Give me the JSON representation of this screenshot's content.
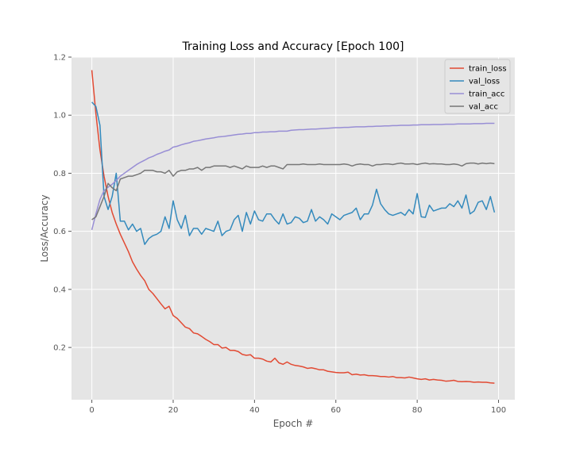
{
  "chart_data": {
    "type": "line",
    "title": "Training Loss and Accuracy [Epoch 100]",
    "xlabel": "Epoch #",
    "ylabel": "Loss/Accuracy",
    "xlim": [
      -5,
      104
    ],
    "ylim": [
      0.02,
      1.2
    ],
    "xticks": [
      0,
      20,
      40,
      60,
      80,
      100
    ],
    "yticks": [
      0.2,
      0.4,
      0.6,
      0.8,
      1.0,
      1.2
    ],
    "xtick_labels": [
      "0",
      "20",
      "40",
      "60",
      "80",
      "100"
    ],
    "ytick_labels": [
      "0.2",
      "0.4",
      "0.6",
      "0.8",
      "1.0",
      "1.2"
    ],
    "grid": true,
    "legend_position": "top-right",
    "series": [
      {
        "name": "train_loss",
        "color": "#e24a33",
        "values": [
          1.155,
          1.005,
          0.88,
          0.79,
          0.72,
          0.665,
          0.625,
          0.59,
          0.56,
          0.53,
          0.495,
          0.47,
          0.448,
          0.43,
          0.4,
          0.386,
          0.368,
          0.35,
          0.333,
          0.342,
          0.31,
          0.3,
          0.285,
          0.27,
          0.265,
          0.25,
          0.247,
          0.238,
          0.228,
          0.22,
          0.21,
          0.21,
          0.198,
          0.2,
          0.19,
          0.19,
          0.186,
          0.176,
          0.173,
          0.175,
          0.163,
          0.163,
          0.16,
          0.153,
          0.15,
          0.163,
          0.147,
          0.142,
          0.15,
          0.142,
          0.138,
          0.136,
          0.133,
          0.128,
          0.13,
          0.127,
          0.123,
          0.123,
          0.118,
          0.116,
          0.114,
          0.113,
          0.113,
          0.115,
          0.106,
          0.108,
          0.105,
          0.106,
          0.103,
          0.103,
          0.102,
          0.1,
          0.1,
          0.098,
          0.1,
          0.096,
          0.096,
          0.095,
          0.098,
          0.095,
          0.092,
          0.09,
          0.092,
          0.088,
          0.09,
          0.088,
          0.087,
          0.084,
          0.085,
          0.087,
          0.083,
          0.082,
          0.083,
          0.082,
          0.08,
          0.081,
          0.08,
          0.08,
          0.078,
          0.077
        ]
      },
      {
        "name": "val_loss",
        "color": "#348abd",
        "values": [
          1.045,
          1.03,
          0.965,
          0.72,
          0.675,
          0.72,
          0.8,
          0.635,
          0.635,
          0.605,
          0.625,
          0.6,
          0.61,
          0.555,
          0.575,
          0.585,
          0.59,
          0.6,
          0.65,
          0.61,
          0.705,
          0.64,
          0.61,
          0.655,
          0.585,
          0.61,
          0.61,
          0.59,
          0.61,
          0.605,
          0.6,
          0.635,
          0.585,
          0.6,
          0.605,
          0.64,
          0.655,
          0.6,
          0.665,
          0.625,
          0.67,
          0.64,
          0.635,
          0.66,
          0.66,
          0.64,
          0.625,
          0.66,
          0.625,
          0.63,
          0.65,
          0.645,
          0.63,
          0.635,
          0.675,
          0.635,
          0.65,
          0.64,
          0.625,
          0.66,
          0.65,
          0.64,
          0.655,
          0.66,
          0.665,
          0.68,
          0.64,
          0.66,
          0.66,
          0.69,
          0.745,
          0.695,
          0.675,
          0.66,
          0.655,
          0.66,
          0.665,
          0.655,
          0.675,
          0.66,
          0.73,
          0.65,
          0.648,
          0.69,
          0.67,
          0.675,
          0.68,
          0.68,
          0.695,
          0.685,
          0.705,
          0.68,
          0.725,
          0.66,
          0.67,
          0.7,
          0.705,
          0.675,
          0.72,
          0.665
        ]
      },
      {
        "name": "train_acc",
        "color": "#988ed5",
        "values": [
          0.605,
          0.66,
          0.71,
          0.74,
          0.752,
          0.762,
          0.775,
          0.79,
          0.8,
          0.81,
          0.82,
          0.83,
          0.838,
          0.845,
          0.853,
          0.858,
          0.865,
          0.87,
          0.876,
          0.88,
          0.89,
          0.893,
          0.898,
          0.902,
          0.905,
          0.91,
          0.912,
          0.915,
          0.918,
          0.92,
          0.922,
          0.925,
          0.926,
          0.928,
          0.93,
          0.932,
          0.934,
          0.935,
          0.937,
          0.937,
          0.94,
          0.94,
          0.942,
          0.942,
          0.943,
          0.943,
          0.945,
          0.945,
          0.945,
          0.948,
          0.949,
          0.95,
          0.95,
          0.951,
          0.952,
          0.952,
          0.953,
          0.954,
          0.955,
          0.956,
          0.957,
          0.957,
          0.958,
          0.958,
          0.959,
          0.96,
          0.96,
          0.96,
          0.961,
          0.961,
          0.962,
          0.962,
          0.963,
          0.963,
          0.964,
          0.964,
          0.965,
          0.965,
          0.965,
          0.966,
          0.966,
          0.967,
          0.967,
          0.967,
          0.968,
          0.968,
          0.968,
          0.969,
          0.969,
          0.969,
          0.97,
          0.97,
          0.97,
          0.97,
          0.971,
          0.971,
          0.971,
          0.972,
          0.972,
          0.972
        ]
      },
      {
        "name": "val_acc",
        "color": "#777777",
        "values": [
          0.64,
          0.65,
          0.685,
          0.72,
          0.765,
          0.75,
          0.74,
          0.78,
          0.785,
          0.79,
          0.79,
          0.795,
          0.8,
          0.81,
          0.81,
          0.81,
          0.805,
          0.805,
          0.8,
          0.81,
          0.79,
          0.805,
          0.81,
          0.81,
          0.815,
          0.815,
          0.82,
          0.81,
          0.82,
          0.82,
          0.825,
          0.825,
          0.825,
          0.825,
          0.82,
          0.825,
          0.82,
          0.815,
          0.825,
          0.82,
          0.82,
          0.82,
          0.825,
          0.82,
          0.825,
          0.825,
          0.82,
          0.815,
          0.83,
          0.83,
          0.83,
          0.83,
          0.832,
          0.83,
          0.83,
          0.83,
          0.832,
          0.83,
          0.83,
          0.83,
          0.83,
          0.83,
          0.832,
          0.83,
          0.825,
          0.83,
          0.832,
          0.83,
          0.83,
          0.825,
          0.83,
          0.83,
          0.832,
          0.832,
          0.83,
          0.833,
          0.835,
          0.832,
          0.832,
          0.833,
          0.83,
          0.833,
          0.835,
          0.832,
          0.833,
          0.832,
          0.832,
          0.83,
          0.83,
          0.832,
          0.83,
          0.825,
          0.833,
          0.835,
          0.835,
          0.832,
          0.835,
          0.833,
          0.835,
          0.833
        ]
      }
    ]
  }
}
